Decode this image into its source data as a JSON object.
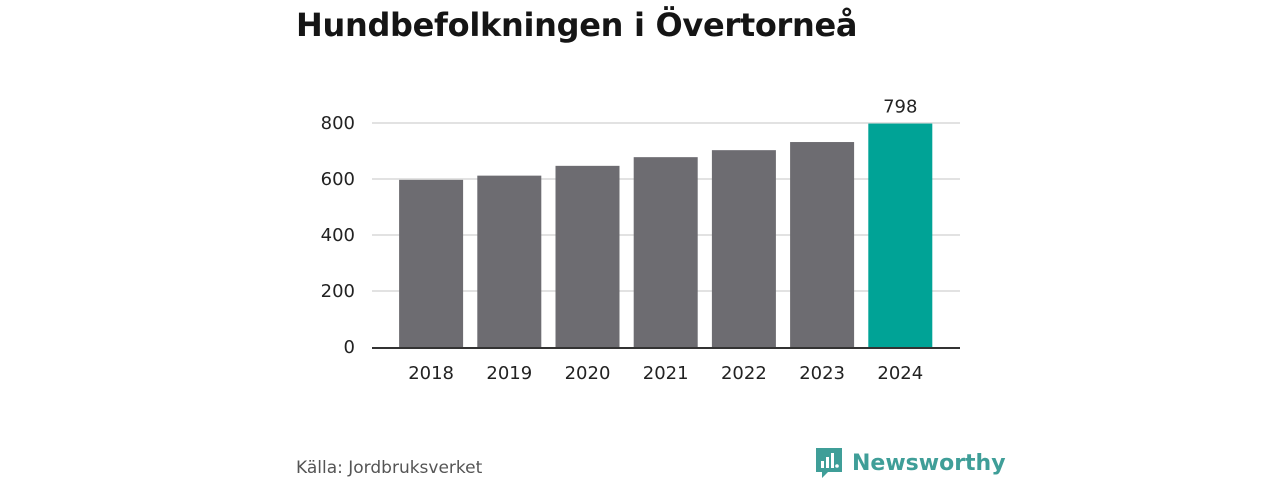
{
  "title": "Hundbefolkningen i Övertorneå",
  "source": "Källa: Jordbruksverket",
  "brand": {
    "name": "Newsworthy",
    "icon": "newsworthy-logo-icon"
  },
  "colors": {
    "bar": "#6d6c71",
    "highlight": "#00a396",
    "grid": "#d9d9d9",
    "axis": "#333333"
  },
  "chart_data": {
    "type": "bar",
    "title": "Hundbefolkningen i Övertorneå",
    "xlabel": "",
    "ylabel": "",
    "categories": [
      "2018",
      "2019",
      "2020",
      "2021",
      "2022",
      "2023",
      "2024"
    ],
    "values": [
      597,
      612,
      647,
      678,
      703,
      732,
      798
    ],
    "highlight_index": 6,
    "data_labels": [
      {
        "index": 6,
        "text": "798"
      }
    ],
    "ylim": [
      0,
      800
    ],
    "yticks": [
      0,
      200,
      400,
      600,
      800
    ],
    "grid": true,
    "legend": "none"
  }
}
